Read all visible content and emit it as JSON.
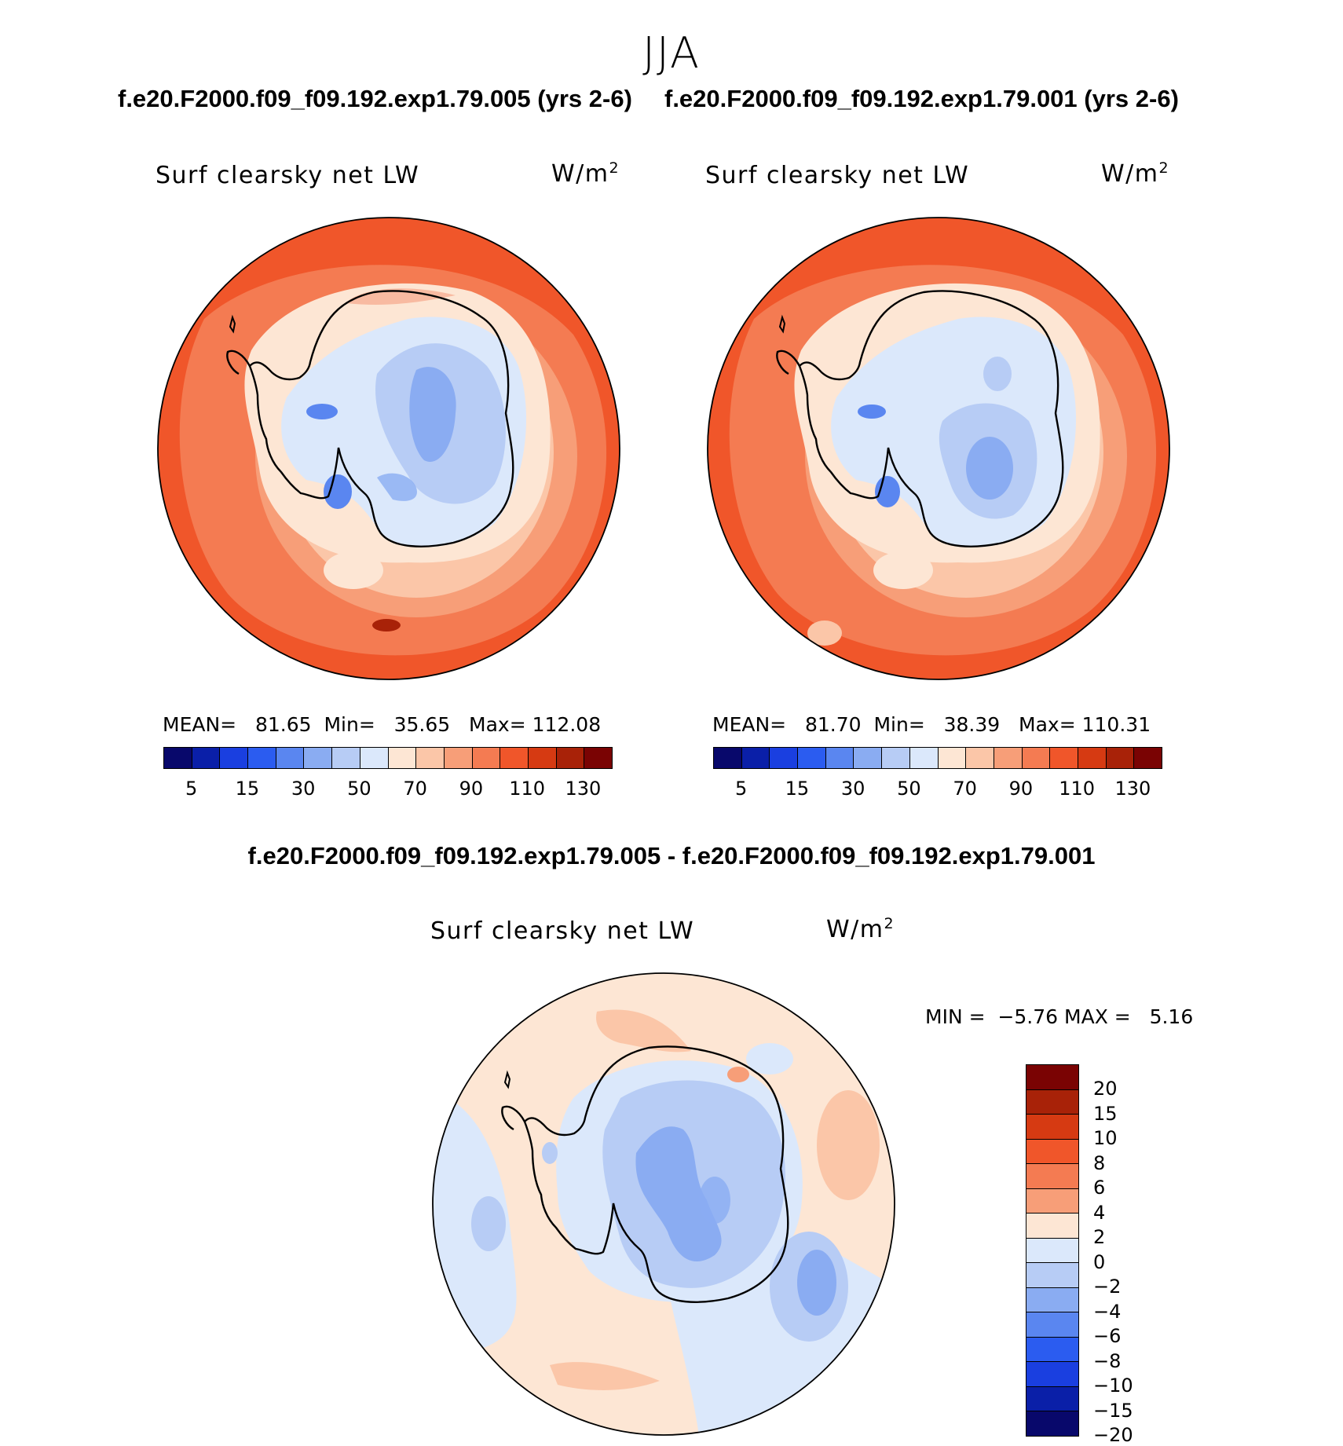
{
  "season": "JJA",
  "case_left": "f.e20.F2000.f09_f09.192.exp1.79.005 (yrs 2-6)",
  "case_right": "f.e20.F2000.f09_f09.192.exp1.79.001 (yrs 2-6)",
  "diff_title": "f.e20.F2000.f09_f09.192.exp1.79.005 - f.e20.F2000.f09_f09.192.exp1.79.001",
  "variable": "Surf clearsky net LW",
  "units_base": "W/m",
  "units_exp": "2",
  "panel_left": {
    "mean_label": "MEAN=",
    "mean": "81.65",
    "min_label": "Min=",
    "min": "35.65",
    "max_label": "Max=",
    "max": "112.08"
  },
  "panel_right": {
    "mean_label": "MEAN=",
    "mean": "81.70",
    "min_label": "Min=",
    "min": "38.39",
    "max_label": "Max=",
    "max": "110.31"
  },
  "panel_diff": {
    "min_label": "MIN =",
    "min": "−5.76",
    "max_label": "MAX =",
    "max": "5.16"
  },
  "abs_colorbar": {
    "colors": [
      "#08086b",
      "#0a1fa8",
      "#1a3fe0",
      "#2b5cf0",
      "#5a86f0",
      "#8aacf2",
      "#b7ccf5",
      "#dbe8fb",
      "#fde6d4",
      "#fbc6a8",
      "#f79e78",
      "#f47b52",
      "#f0562a",
      "#d63a12",
      "#a82208",
      "#7a0303"
    ],
    "labels": [
      "5",
      "15",
      "30",
      "50",
      "70",
      "90",
      "110",
      "130"
    ]
  },
  "diff_colorbar": {
    "colors": [
      "#7a0303",
      "#a82208",
      "#d63a12",
      "#f0562a",
      "#f47b52",
      "#f79e78",
      "#fde6d4",
      "#dbe8fb",
      "#b7ccf5",
      "#8aacf2",
      "#5a86f0",
      "#2b5cf0",
      "#1a3fe0",
      "#0a1fa8",
      "#08086b"
    ],
    "labels": [
      "20",
      "15",
      "10",
      "8",
      "6",
      "4",
      "2",
      "0",
      "−2",
      "−4",
      "−6",
      "−8",
      "−10",
      "−15",
      "−20"
    ]
  }
}
